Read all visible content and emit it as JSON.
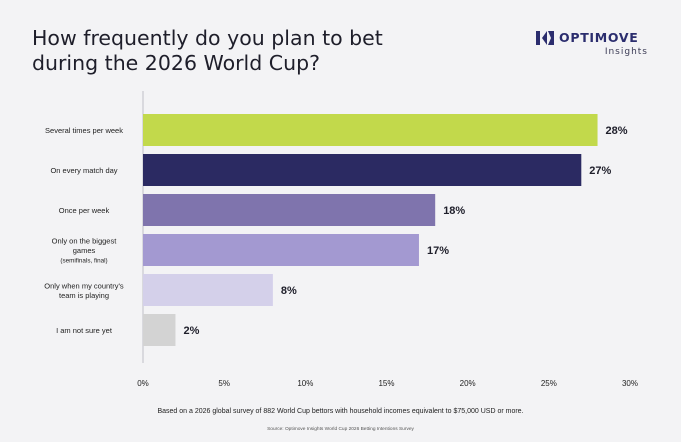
{
  "title_line1": "How frequently do you plan to bet",
  "title_line2": "during the 2026 World Cup?",
  "logo": {
    "name": "OPTIMOVE",
    "sub": "Insights"
  },
  "footnote": "Based on a 2026 global survey of 882 World Cup bettors with household incomes equivalent to $75,000 USD or more.",
  "source": "Source: Optimove Insights World Cup 2026 Betting Intentions Survey",
  "chart_data": {
    "type": "bar",
    "orientation": "horizontal",
    "categories": [
      [
        "Several times per week"
      ],
      [
        "On every match day"
      ],
      [
        "Once per week"
      ],
      [
        "Only on the biggest",
        "games",
        "(semifinals, final)"
      ],
      [
        "Only when my country's",
        "team is playing"
      ],
      [
        "I am not sure yet"
      ]
    ],
    "values": [
      28,
      27,
      18,
      17,
      8,
      2
    ],
    "value_labels": [
      "28%",
      "27%",
      "18%",
      "17%",
      "8%",
      "2%"
    ],
    "colors": [
      "#c2d94b",
      "#2b2a62",
      "#7f74ad",
      "#a399d1",
      "#d4d0ea",
      "#d3d3d3"
    ],
    "xlim": [
      0,
      30
    ],
    "ticks": [
      "0%",
      "5%",
      "10%",
      "15%",
      "20%",
      "25%",
      "30%"
    ],
    "grid": false
  }
}
